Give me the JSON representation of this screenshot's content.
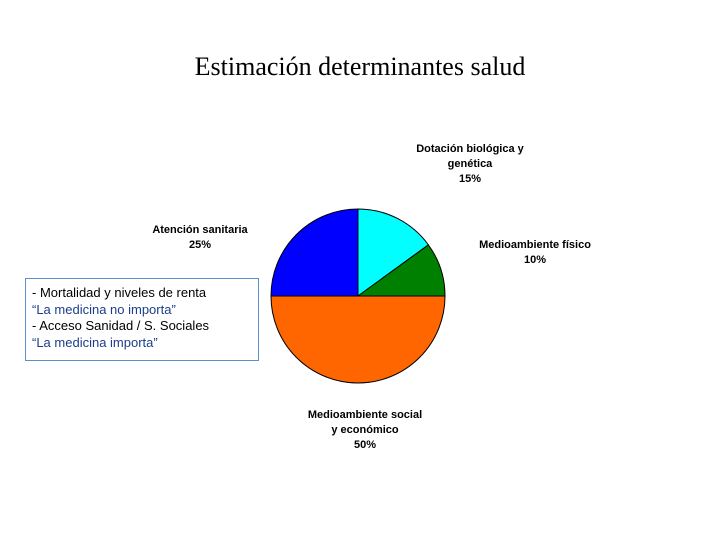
{
  "title": "Estimación determinantes salud",
  "chart_data": {
    "type": "pie",
    "title": "Estimación determinantes salud",
    "start_angle_deg": 0,
    "direction": "clockwise",
    "slices": [
      {
        "label_lines": [
          "Dotación biológica y",
          "genética"
        ],
        "value": 15,
        "value_label": "15%",
        "color": "#00ffff"
      },
      {
        "label_lines": [
          "Medioambiente físico"
        ],
        "value": 10,
        "value_label": "10%",
        "color": "#008000"
      },
      {
        "label_lines": [
          "Medioambiente social",
          "y económico"
        ],
        "value": 50,
        "value_label": "50%",
        "color": "#ff6600"
      },
      {
        "label_lines": [
          "Atención sanitaria"
        ],
        "value": 25,
        "value_label": "25%",
        "color": "#0000ff"
      }
    ]
  },
  "note": {
    "lines": [
      "- Mortalidad y niveles de renta",
      "“La medicina no importa”",
      "- Acceso Sanidad / S. Sociales",
      "“La medicina importa”"
    ]
  }
}
